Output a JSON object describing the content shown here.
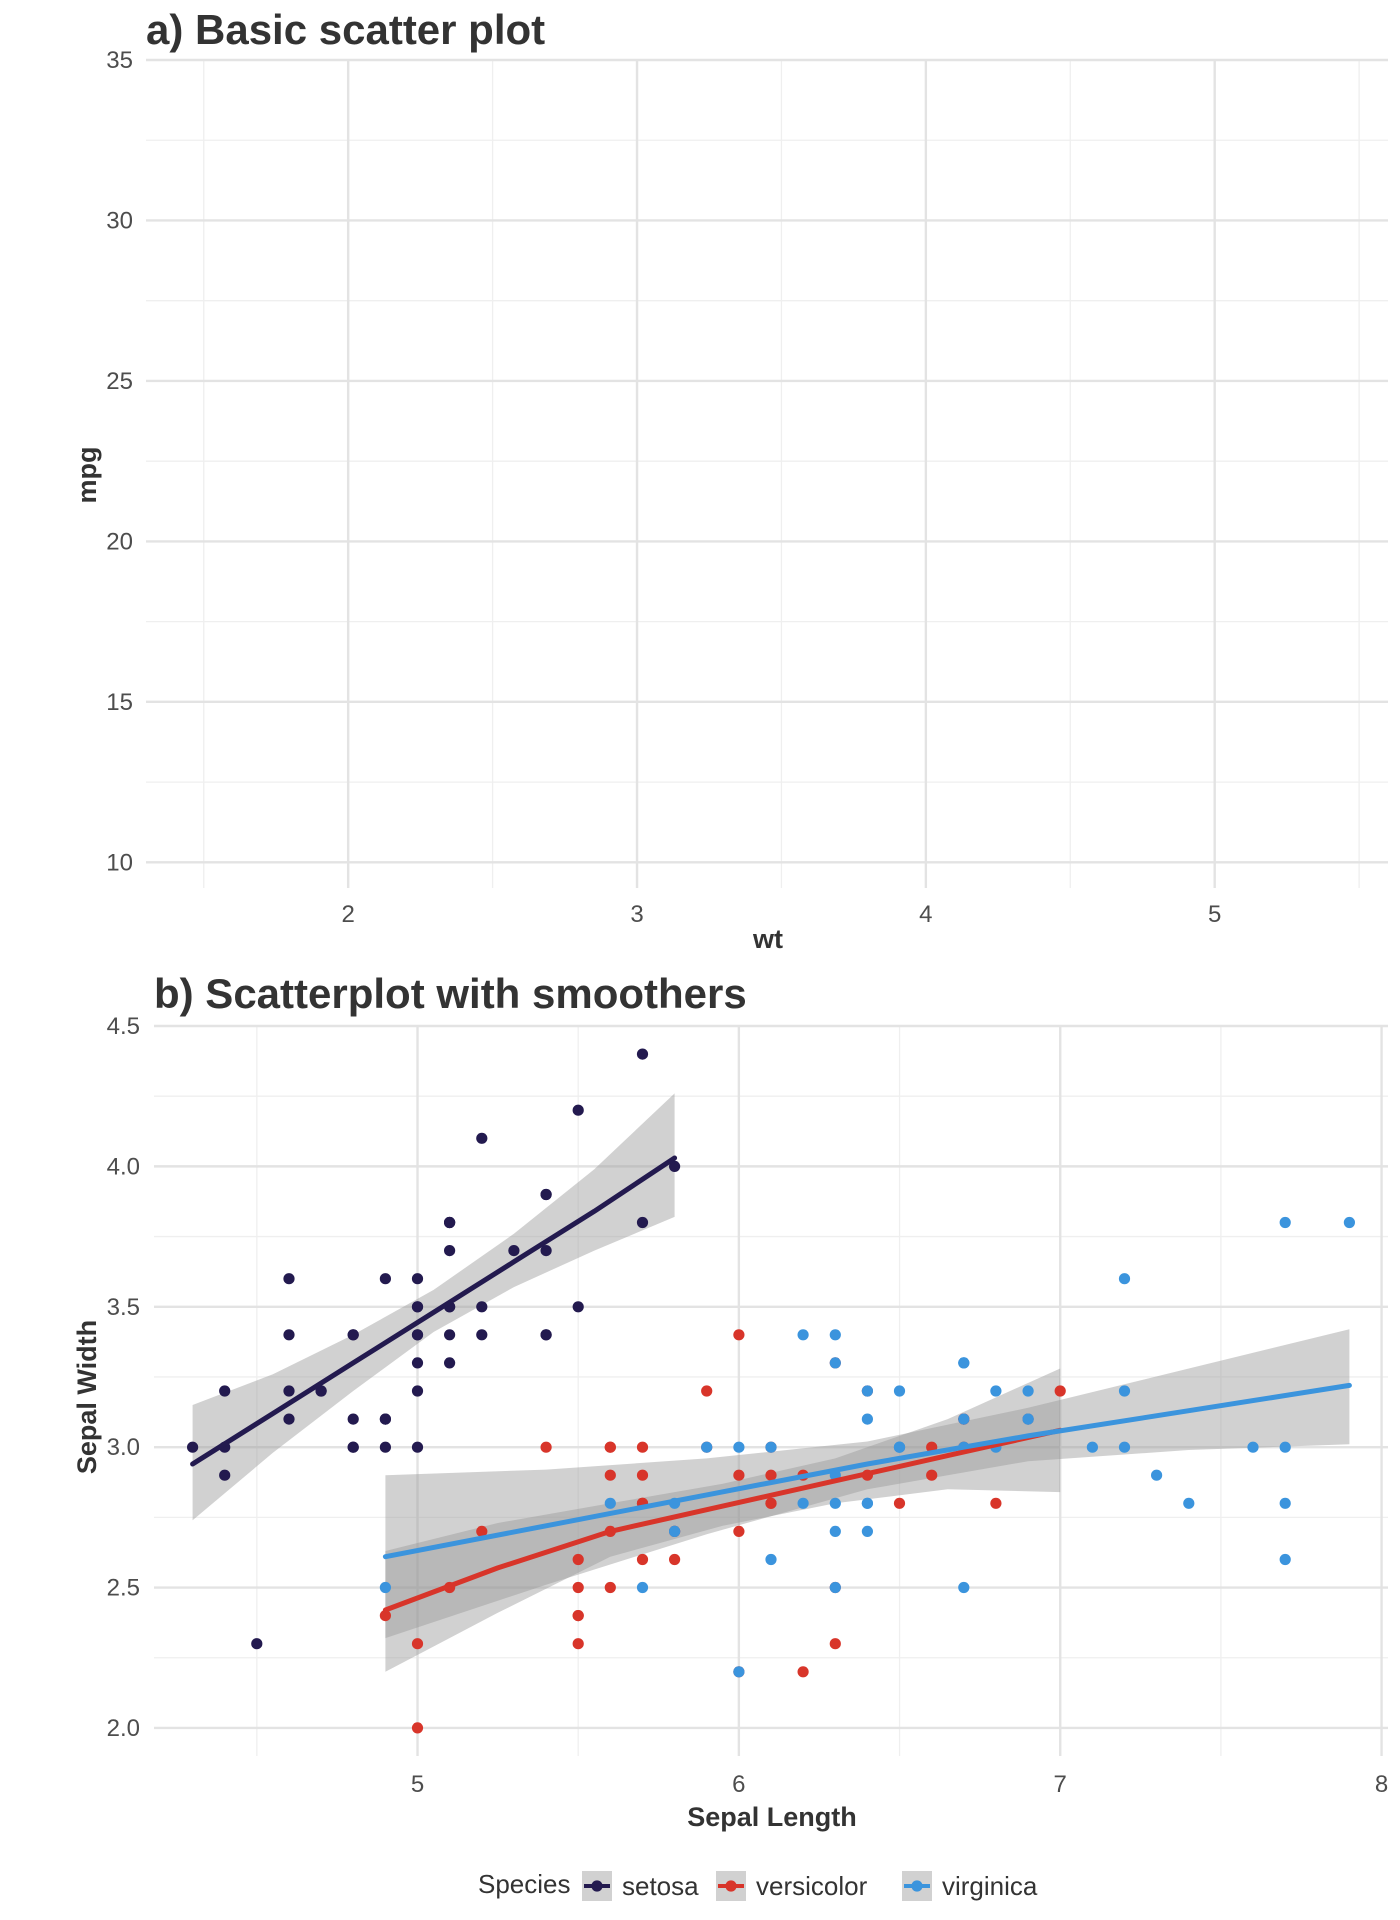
{
  "chart_data": [
    {
      "type": "scatter",
      "title": "a) Basic scatter plot",
      "xlabel": "wt",
      "ylabel": "mpg",
      "xlim": [
        1.3,
        5.6
      ],
      "ylim": [
        9.2,
        35
      ],
      "xticks": [
        2,
        3,
        4,
        5
      ],
      "yticks": [
        10,
        15,
        20,
        25,
        30,
        35
      ],
      "grid": true,
      "points": []
    },
    {
      "type": "scatter",
      "title": "b) Scatterplot with smoothers",
      "xlabel": "Sepal Length",
      "ylabel": "Sepal Width",
      "xlim": [
        4.18,
        8.02
      ],
      "ylim": [
        1.9,
        4.5
      ],
      "xticks": [
        5,
        6,
        7,
        8
      ],
      "yticks": [
        2.0,
        2.5,
        3.0,
        3.5,
        4.0,
        4.5
      ],
      "grid": true,
      "legend": {
        "title": "Species",
        "position": "bottom"
      },
      "series": [
        {
          "name": "setosa",
          "color": "#231a4f",
          "points": [
            [
              5.1,
              3.5
            ],
            [
              4.9,
              3.0
            ],
            [
              4.7,
              3.2
            ],
            [
              4.6,
              3.1
            ],
            [
              5.0,
              3.6
            ],
            [
              5.4,
              3.9
            ],
            [
              4.6,
              3.4
            ],
            [
              5.0,
              3.4
            ],
            [
              4.4,
              2.9
            ],
            [
              4.9,
              3.1
            ],
            [
              5.4,
              3.7
            ],
            [
              4.8,
              3.4
            ],
            [
              4.8,
              3.0
            ],
            [
              4.3,
              3.0
            ],
            [
              5.8,
              4.0
            ],
            [
              5.7,
              4.4
            ],
            [
              5.4,
              3.9
            ],
            [
              5.1,
              3.5
            ],
            [
              5.7,
              3.8
            ],
            [
              5.1,
              3.8
            ],
            [
              5.4,
              3.4
            ],
            [
              5.1,
              3.7
            ],
            [
              4.6,
              3.6
            ],
            [
              5.1,
              3.3
            ],
            [
              4.8,
              3.4
            ],
            [
              5.0,
              3.0
            ],
            [
              5.0,
              3.4
            ],
            [
              5.2,
              3.5
            ],
            [
              5.2,
              3.4
            ],
            [
              4.7,
              3.2
            ],
            [
              4.8,
              3.1
            ],
            [
              5.4,
              3.4
            ],
            [
              5.2,
              4.1
            ],
            [
              5.5,
              4.2
            ],
            [
              4.9,
              3.1
            ],
            [
              5.0,
              3.2
            ],
            [
              5.5,
              3.5
            ],
            [
              4.9,
              3.6
            ],
            [
              4.4,
              3.0
            ],
            [
              5.1,
              3.4
            ],
            [
              5.0,
              3.5
            ],
            [
              4.5,
              2.3
            ],
            [
              4.4,
              3.2
            ],
            [
              5.0,
              3.5
            ],
            [
              5.1,
              3.8
            ],
            [
              4.8,
              3.0
            ],
            [
              5.1,
              3.8
            ],
            [
              4.6,
              3.2
            ],
            [
              5.3,
              3.7
            ],
            [
              5.0,
              3.3
            ]
          ],
          "smoother": {
            "x": [
              4.3,
              4.55,
              4.8,
              5.05,
              5.3,
              5.55,
              5.8
            ],
            "y": [
              2.94,
              3.12,
              3.3,
              3.48,
              3.66,
              3.84,
              4.03
            ],
            "ymin": [
              2.74,
              2.98,
              3.2,
              3.41,
              3.57,
              3.7,
              3.82
            ],
            "ymax": [
              3.15,
              3.26,
              3.4,
              3.56,
              3.76,
              3.99,
              4.26
            ]
          }
        },
        {
          "name": "versicolor",
          "color": "#d8352a",
          "points": [
            [
              7.0,
              3.2
            ],
            [
              6.4,
              3.2
            ],
            [
              6.9,
              3.1
            ],
            [
              5.5,
              2.3
            ],
            [
              6.5,
              2.8
            ],
            [
              5.7,
              2.8
            ],
            [
              6.3,
              3.3
            ],
            [
              4.9,
              2.4
            ],
            [
              6.6,
              2.9
            ],
            [
              5.2,
              2.7
            ],
            [
              5.0,
              2.0
            ],
            [
              5.9,
              3.0
            ],
            [
              6.0,
              2.2
            ],
            [
              6.1,
              2.9
            ],
            [
              5.6,
              2.9
            ],
            [
              6.7,
              3.1
            ],
            [
              5.6,
              3.0
            ],
            [
              5.8,
              2.7
            ],
            [
              6.2,
              2.2
            ],
            [
              5.6,
              2.5
            ],
            [
              5.9,
              3.2
            ],
            [
              6.1,
              2.8
            ],
            [
              6.3,
              2.5
            ],
            [
              6.1,
              2.8
            ],
            [
              6.4,
              2.9
            ],
            [
              6.6,
              3.0
            ],
            [
              6.8,
              2.8
            ],
            [
              6.7,
              3.0
            ],
            [
              6.0,
              2.9
            ],
            [
              5.7,
              2.6
            ],
            [
              5.5,
              2.4
            ],
            [
              5.5,
              2.4
            ],
            [
              5.8,
              2.7
            ],
            [
              6.0,
              2.7
            ],
            [
              5.4,
              3.0
            ],
            [
              6.0,
              3.4
            ],
            [
              6.7,
              3.1
            ],
            [
              6.3,
              2.3
            ],
            [
              5.6,
              3.0
            ],
            [
              5.5,
              2.5
            ],
            [
              5.5,
              2.6
            ],
            [
              6.1,
              3.0
            ],
            [
              5.8,
              2.6
            ],
            [
              5.0,
              2.3
            ],
            [
              5.6,
              2.7
            ],
            [
              5.7,
              3.0
            ],
            [
              5.7,
              2.9
            ],
            [
              6.2,
              2.9
            ],
            [
              5.1,
              2.5
            ],
            [
              5.7,
              2.8
            ]
          ],
          "smoother": {
            "x": [
              4.9,
              5.25,
              5.6,
              5.95,
              6.3,
              6.65,
              7.0
            ],
            "y": [
              2.42,
              2.57,
              2.7,
              2.79,
              2.88,
              2.97,
              3.06
            ],
            "ymin": [
              2.2,
              2.41,
              2.61,
              2.72,
              2.8,
              2.85,
              2.84
            ],
            "ymax": [
              2.63,
              2.73,
              2.8,
              2.87,
              2.96,
              3.1,
              3.28
            ]
          }
        },
        {
          "name": "virginica",
          "color": "#3b94dd",
          "points": [
            [
              6.3,
              3.3
            ],
            [
              5.8,
              2.7
            ],
            [
              7.1,
              3.0
            ],
            [
              6.3,
              2.9
            ],
            [
              6.5,
              3.0
            ],
            [
              7.6,
              3.0
            ],
            [
              4.9,
              2.5
            ],
            [
              7.3,
              2.9
            ],
            [
              6.7,
              2.5
            ],
            [
              7.2,
              3.6
            ],
            [
              6.5,
              3.2
            ],
            [
              6.4,
              2.7
            ],
            [
              6.8,
              3.0
            ],
            [
              5.7,
              2.5
            ],
            [
              5.8,
              2.8
            ],
            [
              6.4,
              3.2
            ],
            [
              6.5,
              3.0
            ],
            [
              7.7,
              3.8
            ],
            [
              7.7,
              2.6
            ],
            [
              6.0,
              2.2
            ],
            [
              6.9,
              3.2
            ],
            [
              5.6,
              2.8
            ],
            [
              7.7,
              2.8
            ],
            [
              6.3,
              2.7
            ],
            [
              6.7,
              3.3
            ],
            [
              7.2,
              3.2
            ],
            [
              6.2,
              2.8
            ],
            [
              6.1,
              3.0
            ],
            [
              6.4,
              2.8
            ],
            [
              7.2,
              3.0
            ],
            [
              7.4,
              2.8
            ],
            [
              7.9,
              3.8
            ],
            [
              6.4,
              2.8
            ],
            [
              6.3,
              2.8
            ],
            [
              6.1,
              2.6
            ],
            [
              7.7,
              3.0
            ],
            [
              6.3,
              3.4
            ],
            [
              6.4,
              3.1
            ],
            [
              6.0,
              3.0
            ],
            [
              6.9,
              3.1
            ],
            [
              6.7,
              3.1
            ],
            [
              6.9,
              3.1
            ],
            [
              5.8,
              2.7
            ],
            [
              6.8,
              3.2
            ],
            [
              6.7,
              3.3
            ],
            [
              6.7,
              3.0
            ],
            [
              6.3,
              2.5
            ],
            [
              6.5,
              3.0
            ],
            [
              6.2,
              3.4
            ],
            [
              5.9,
              3.0
            ]
          ],
          "smoother": {
            "x": [
              4.9,
              5.4,
              5.9,
              6.4,
              6.9,
              7.4,
              7.9
            ],
            "y": [
              2.61,
              2.72,
              2.83,
              2.94,
              3.04,
              3.13,
              3.22
            ],
            "ymin": [
              2.32,
              2.51,
              2.69,
              2.85,
              2.95,
              2.99,
              3.01
            ],
            "ymax": [
              2.9,
              2.92,
              2.96,
              3.02,
              3.14,
              3.28,
              3.42
            ]
          }
        }
      ]
    }
  ]
}
